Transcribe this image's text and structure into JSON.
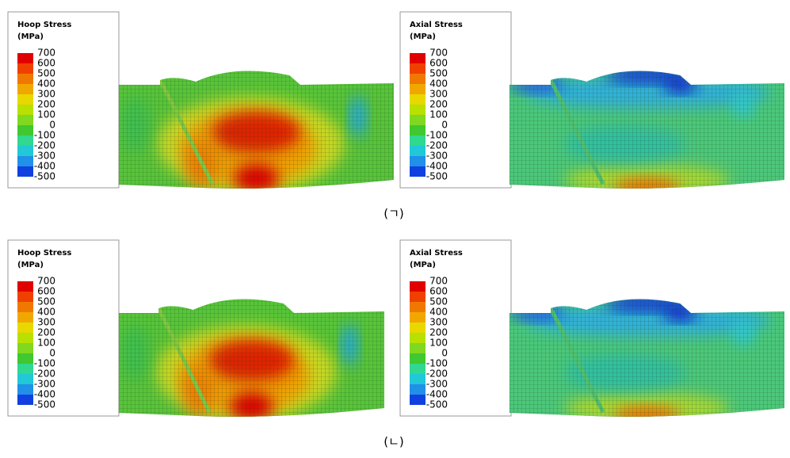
{
  "panels": [
    {
      "legend_title": "Hoop Stress",
      "legend_unit": "(MPa)",
      "legend_labels": [
        700,
        600,
        500,
        400,
        300,
        200,
        100,
        0,
        -100,
        -200,
        -300,
        -400,
        -500
      ]
    },
    {
      "legend_title": "Axial Stress",
      "legend_unit": "(MPa)",
      "legend_labels": [
        700,
        600,
        500,
        400,
        300,
        200,
        100,
        0,
        -100,
        -200,
        -300,
        -400,
        -500
      ]
    },
    {
      "legend_title": "Hoop Stress",
      "legend_unit": "(MPa)",
      "legend_labels": [
        700,
        600,
        500,
        400,
        300,
        200,
        100,
        0,
        -100,
        -200,
        -300,
        -400,
        -500
      ]
    },
    {
      "legend_title": "Axial Stress",
      "legend_unit": "(MPa)",
      "legend_labels": [
        700,
        600,
        500,
        400,
        300,
        200,
        100,
        0,
        -100,
        -200,
        -300,
        -400,
        -500
      ]
    }
  ],
  "captions": [
    "(ㄱ)",
    "(ㄴ)"
  ]
}
